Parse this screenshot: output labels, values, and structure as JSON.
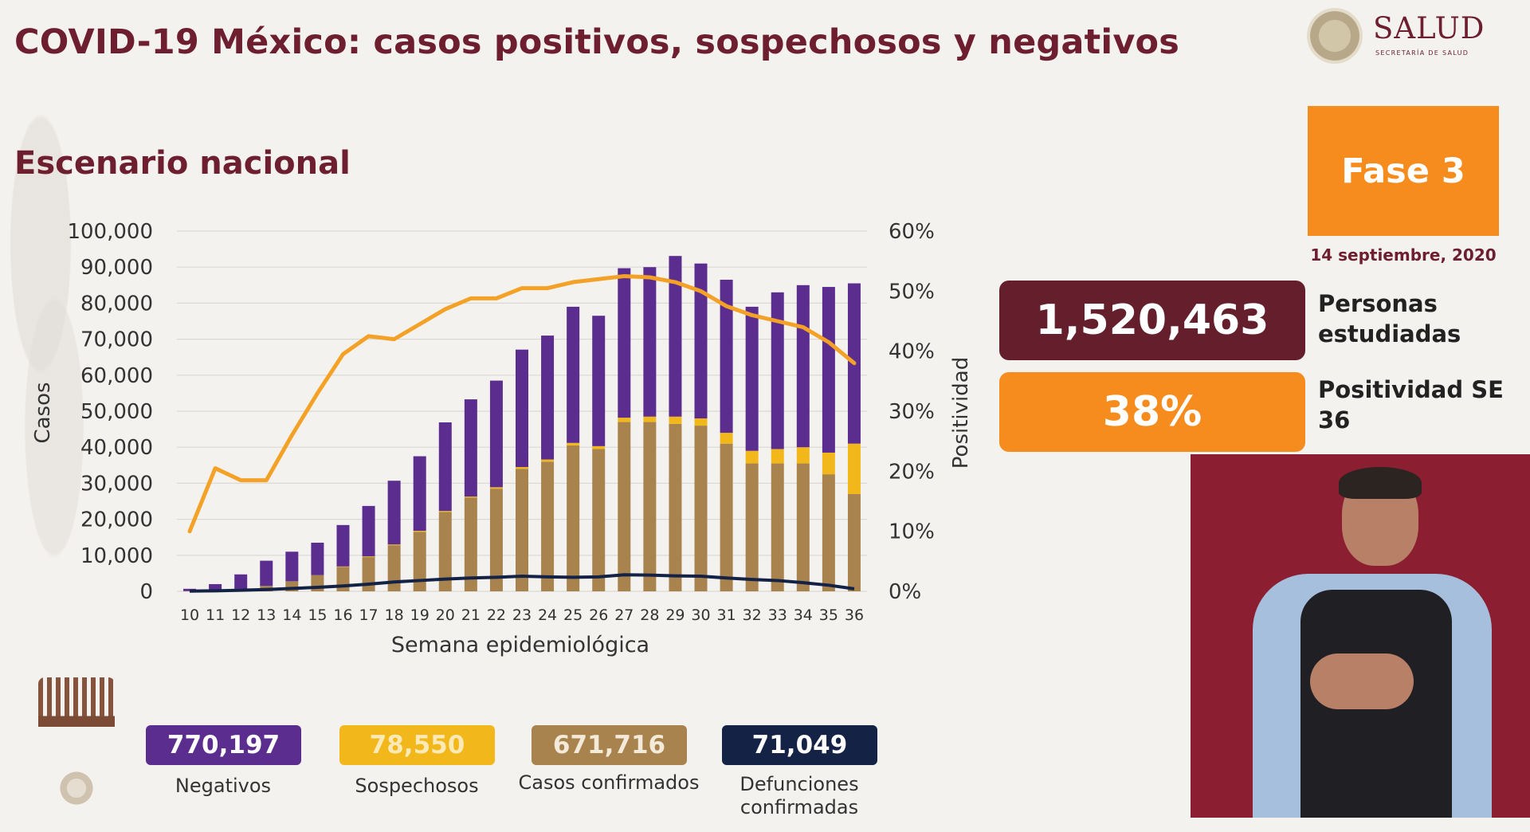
{
  "header": {
    "title": "COVID-19 México: casos positivos, sospechosos y negativos",
    "subtitle": "Escenario nacional"
  },
  "logo": {
    "text": "SALUD",
    "subtext": "SECRETARÍA DE SALUD"
  },
  "phase": {
    "label": "Fase 3",
    "date": "14 septiembre, 2020"
  },
  "stats": {
    "studied_value": "1,520,463",
    "studied_label": "Personas estudiadas",
    "positivity_value": "38%",
    "positivity_label": "Positividad SE 36"
  },
  "totals": [
    {
      "value": "770,197",
      "label": "Negativos",
      "color": "#5b2d8e"
    },
    {
      "value": "78,550",
      "label": "Sospechosos",
      "color": "#f2b81b"
    },
    {
      "value": "671,716",
      "label": "Casos confirmados",
      "color": "#a8834e"
    },
    {
      "value": "71,049",
      "label": "Defunciones confirmadas",
      "color": "#142246"
    }
  ],
  "colors": {
    "title": "#6e1f2f",
    "negativos": "#5b2d8e",
    "sospechosos": "#f2b81b",
    "confirmados": "#a8834e",
    "defunciones": "#142246",
    "positividad": "#f4a127"
  },
  "chart_data": {
    "type": "bar",
    "stacked": true,
    "xlabel": "Semana epidemiológica",
    "ylabel": "Casos",
    "y2label": "Positividad",
    "ylim": [
      0,
      100000
    ],
    "y2lim": [
      0,
      60
    ],
    "yticks": [
      "0",
      "10,000",
      "20,000",
      "30,000",
      "40,000",
      "50,000",
      "60,000",
      "70,000",
      "80,000",
      "90,000",
      "100,000"
    ],
    "y2ticks": [
      "0%",
      "10%",
      "20%",
      "30%",
      "40%",
      "50%",
      "60%"
    ],
    "grid": true,
    "categories": [
      "10",
      "11",
      "12",
      "13",
      "14",
      "15",
      "16",
      "17",
      "18",
      "19",
      "20",
      "21",
      "22",
      "23",
      "24",
      "25",
      "26",
      "27",
      "28",
      "29",
      "30",
      "31",
      "32",
      "33",
      "34",
      "35",
      "36"
    ],
    "series": [
      {
        "name": "Casos confirmados",
        "kind": "bar",
        "color": "#a8834e",
        "values": [
          100,
          300,
          700,
          1500,
          2800,
          4500,
          6800,
          9500,
          12800,
          16500,
          22000,
          26000,
          28500,
          34000,
          36000,
          40500,
          39500,
          47000,
          47000,
          46500,
          46000,
          41000,
          35500,
          35500,
          35500,
          32500,
          27000
        ]
      },
      {
        "name": "Sospechosos",
        "kind": "bar",
        "color": "#f2b81b",
        "values": [
          0,
          0,
          0,
          0,
          0,
          0,
          100,
          200,
          200,
          300,
          300,
          300,
          400,
          500,
          600,
          700,
          800,
          1200,
          1500,
          2000,
          2000,
          3000,
          3500,
          4000,
          4500,
          6000,
          14000
        ]
      },
      {
        "name": "Negativos",
        "kind": "bar",
        "color": "#5b2d8e",
        "values": [
          600,
          1700,
          4000,
          7000,
          8200,
          9000,
          11500,
          14000,
          17700,
          20700,
          24600,
          27000,
          29600,
          32600,
          34400,
          37800,
          36200,
          41500,
          41500,
          44600,
          43000,
          42500,
          40000,
          43500,
          45000,
          46000,
          44500
        ]
      },
      {
        "name": "Defunciones confirmadas",
        "kind": "line",
        "color": "#142246",
        "values": [
          50,
          150,
          300,
          500,
          800,
          1100,
          1500,
          2000,
          2600,
          3000,
          3400,
          3700,
          3900,
          4200,
          4000,
          3900,
          4000,
          4600,
          4500,
          4300,
          4200,
          3700,
          3300,
          3000,
          2400,
          1700,
          700
        ]
      },
      {
        "name": "Positividad",
        "kind": "line",
        "axis": "y2",
        "color": "#f4a127",
        "values": [
          10,
          20.5,
          18.5,
          18.5,
          26,
          33,
          39.5,
          42.5,
          42,
          44.5,
          47,
          48.8,
          48.8,
          50.5,
          50.5,
          51.5,
          52,
          52.5,
          52.3,
          51.5,
          50,
          47.5,
          46,
          45,
          44,
          41.5,
          38
        ]
      }
    ]
  }
}
